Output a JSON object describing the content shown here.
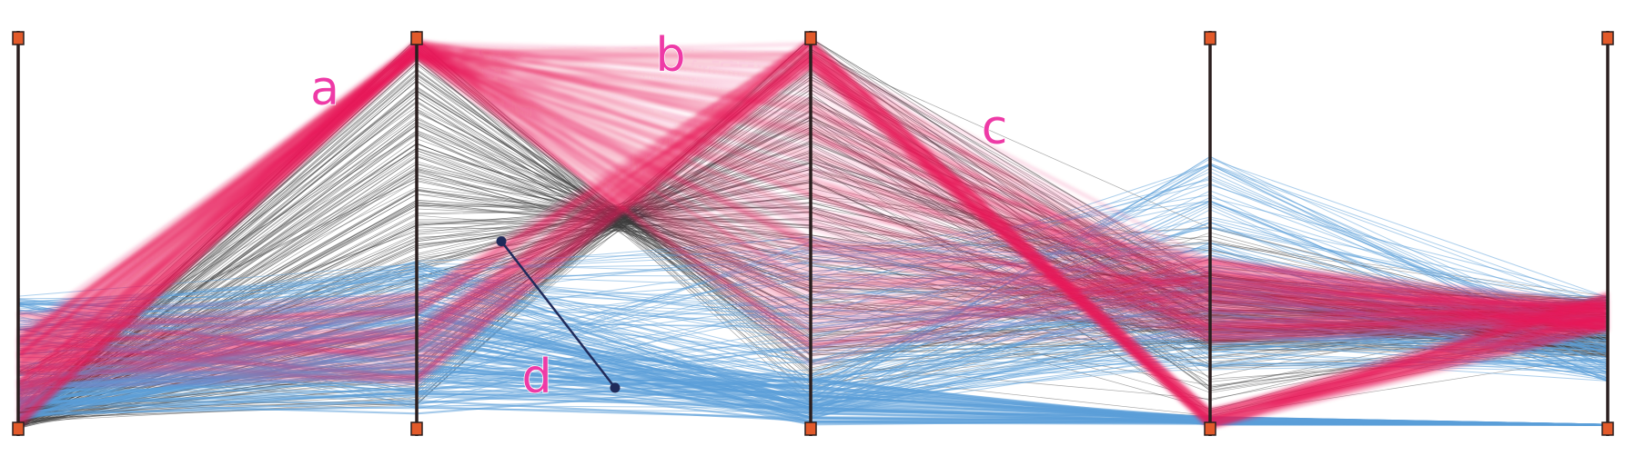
{
  "chart_data": {
    "type": "parallel_coordinates",
    "axes": [
      "",
      "",
      "",
      "",
      ""
    ],
    "annotations": [
      {
        "label": "a",
        "axis_span": [
          0,
          1
        ],
        "value": 0.84
      },
      {
        "label": "b",
        "axis_span": [
          1,
          2
        ],
        "value": 0.92
      },
      {
        "label": "c",
        "axis_span": [
          2,
          3
        ],
        "value": 0.74
      },
      {
        "label": "d",
        "axis_span": [
          1,
          2
        ],
        "value": 0.1
      }
    ],
    "series": [
      {
        "color": "#444444",
        "description": "gray"
      },
      {
        "color": "#e8195a",
        "description": "pink"
      },
      {
        "color": "#5b9fd9",
        "description": "blue"
      }
    ],
    "colors": {
      "axis": "#2a1e1e",
      "handle": "#e35a2a",
      "annotation_text": "#ee3aa6",
      "brush": "#1f2a5a"
    }
  }
}
